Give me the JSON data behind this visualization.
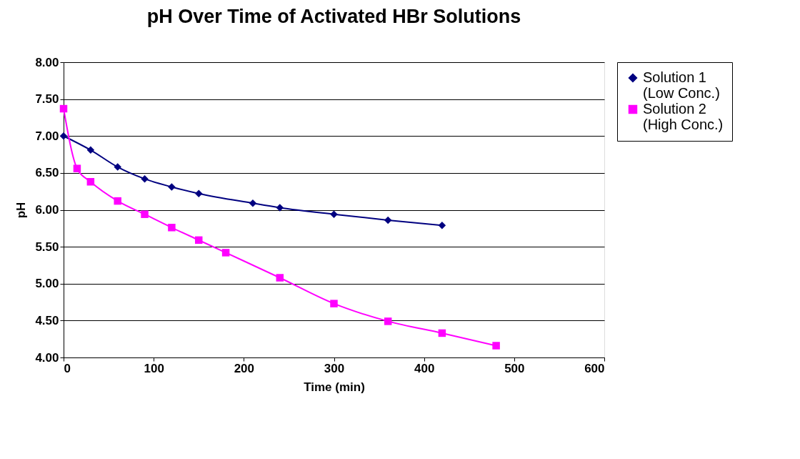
{
  "chart_data": {
    "type": "line",
    "title": "pH Over Time of Activated HBr Solutions",
    "xlabel": "Time (min)",
    "ylabel": "pH",
    "xlim": [
      0,
      600
    ],
    "xticks": [
      0,
      100,
      200,
      300,
      400,
      500,
      600
    ],
    "ylim": [
      4,
      8
    ],
    "yticks": [
      {
        "value": 4,
        "label": "4.00"
      },
      {
        "value": 4.5,
        "label": "4.50"
      },
      {
        "value": 5,
        "label": "5.00"
      },
      {
        "value": 5.5,
        "label": "5.50"
      },
      {
        "value": 6,
        "label": "6.00"
      },
      {
        "value": 6.5,
        "label": "6.50"
      },
      {
        "value": 7,
        "label": "7.00"
      },
      {
        "value": 7.5,
        "label": "7.50"
      },
      {
        "value": 8,
        "label": "8.00"
      }
    ],
    "grid": "y",
    "legend": "right",
    "series": [
      {
        "name": "Solution 1 (Low Conc.)",
        "color": "#000080",
        "marker": "diamond",
        "x": [
          0,
          30,
          60,
          90,
          120,
          150,
          210,
          240,
          300,
          360,
          420
        ],
        "values": [
          7.0,
          6.81,
          6.58,
          6.42,
          6.31,
          6.22,
          6.09,
          6.03,
          5.94,
          5.86,
          5.79
        ]
      },
      {
        "name": "Solution 2 (High Conc.)",
        "color": "#ff00ff",
        "marker": "square",
        "x": [
          0,
          15,
          30,
          60,
          90,
          120,
          150,
          180,
          240,
          300,
          360,
          420,
          480
        ],
        "values": [
          7.37,
          6.56,
          6.38,
          6.12,
          5.94,
          5.76,
          5.59,
          5.42,
          5.08,
          4.73,
          4.49,
          4.33,
          4.16
        ]
      }
    ]
  }
}
